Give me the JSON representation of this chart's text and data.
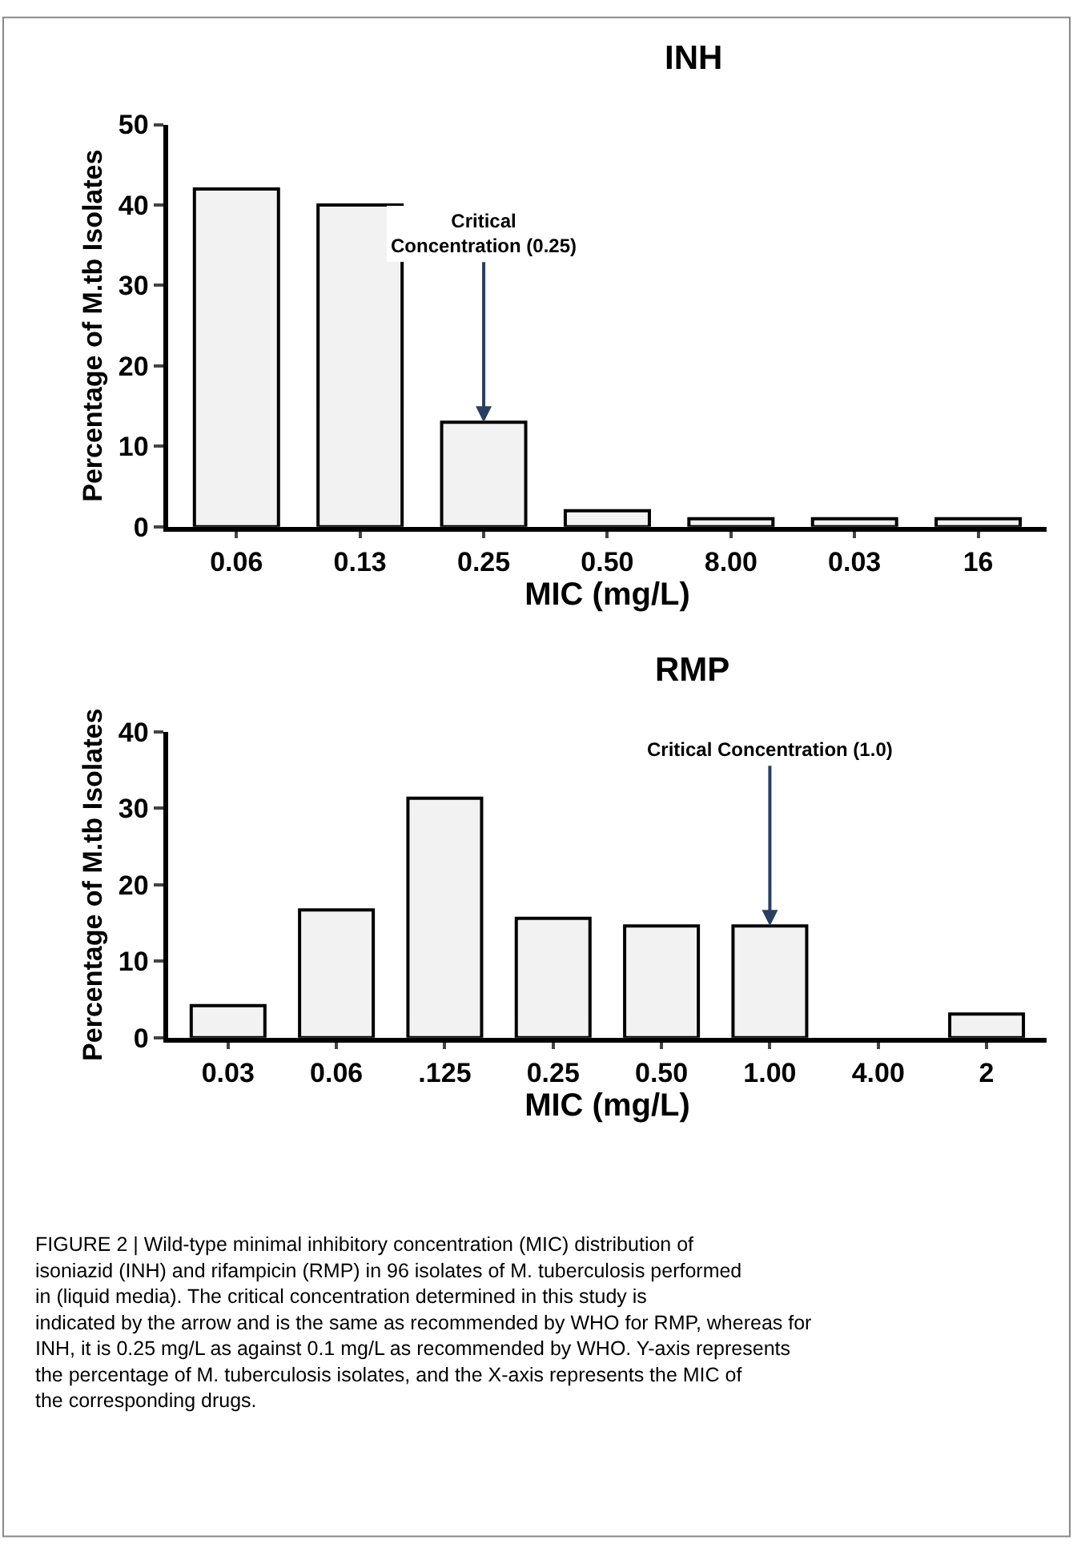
{
  "chart_data": [
    {
      "type": "bar",
      "title": "INH",
      "xlabel": "MIC (mg/L)",
      "ylabel": "Percentage of M.tb Isolates",
      "categories": [
        "0.06",
        "0.13",
        "0.25",
        "0.50",
        "8.00",
        "0.03",
        "16"
      ],
      "values": [
        42,
        40,
        13,
        2,
        1,
        1,
        1
      ],
      "color": "#f2f2f2",
      "ylim": [
        0,
        50
      ],
      "yticks": [
        0,
        10,
        20,
        30,
        40,
        50
      ],
      "annotations": [
        {
          "text": "Critical\nConcentration (0.25)",
          "x": "0.25",
          "y": 13
        }
      ]
    },
    {
      "type": "bar",
      "title": "RMP",
      "xlabel": "MIC (mg/L)",
      "ylabel": "Percentage of M.tb Isolates",
      "categories": [
        "0.03",
        "0.06",
        ".125",
        "0.25",
        "0.50",
        "1.00",
        "4.00",
        "2"
      ],
      "values": [
        4.2,
        16.7,
        31.3,
        15.6,
        14.6,
        14.6,
        0,
        3.1
      ],
      "color": "#f2f2f2",
      "ylim": [
        0,
        40
      ],
      "yticks": [
        0,
        10,
        20,
        30,
        40
      ],
      "annotations": [
        {
          "text": "Critical Concentration (1.0)",
          "x": "1.00",
          "y": 14.6
        },
        "FIGURE 2 | Wild-type minimal inhibitory concentration (MIC) distribution of isoniazid (INH) and rifampicin (RMP) in 96 isolates of M. tuberculosis performed in (liquid media). The critical concentration determined in this study is indicated by the arrow and is the same as recommended by WHO for RMP, whereas for INH, it is 0.25 mg/L as against 0.1 mg/L as recommended by WHO. Y-axis represents the percentage of M. tuberculosis isolates, and the X-axis represents the MIC of the corresponding drugs."
      ]
    }
  ]
}
